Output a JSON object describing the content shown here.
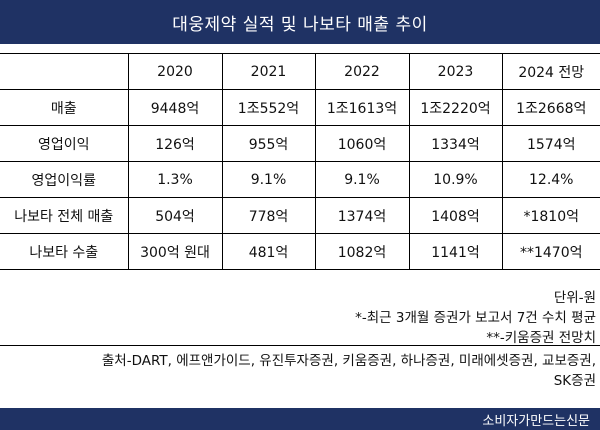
{
  "title": "대웅제약 실적 및 나보타 매출 추이",
  "table": {
    "corner": "",
    "columns": [
      "2020",
      "2021",
      "2022",
      "2023",
      "2024 전망"
    ],
    "rows": [
      {
        "label": "매출",
        "values": [
          "9448억",
          "1조552억",
          "1조1613억",
          "1조2220억",
          "1조2668억"
        ]
      },
      {
        "label": "영업이익",
        "values": [
          "126억",
          "955억",
          "1060억",
          "1334억",
          "1574억"
        ]
      },
      {
        "label": "영업이익률",
        "values": [
          "1.3%",
          "9.1%",
          "9.1%",
          "10.9%",
          "12.4%"
        ]
      },
      {
        "label": "나보타 전체 매출",
        "values": [
          "504억",
          "778억",
          "1374억",
          "1408억",
          "*1810억"
        ]
      },
      {
        "label": "나보타 수출",
        "values": [
          "300억 원대",
          "481억",
          "1082억",
          "1141억",
          "**1470억"
        ]
      }
    ]
  },
  "notes": [
    "단위-원",
    "*-최근 3개월 증권가 보고서 7건 수치 평균",
    "**-키움증권 전망치"
  ],
  "sources": [
    "출처-DART, 에프앤가이드, 유진투자증권, 키움증권, 하나증권, 미래에셋증권, 교보증권,",
    "SK증권"
  ],
  "footer": "소비자가만드는신문"
}
